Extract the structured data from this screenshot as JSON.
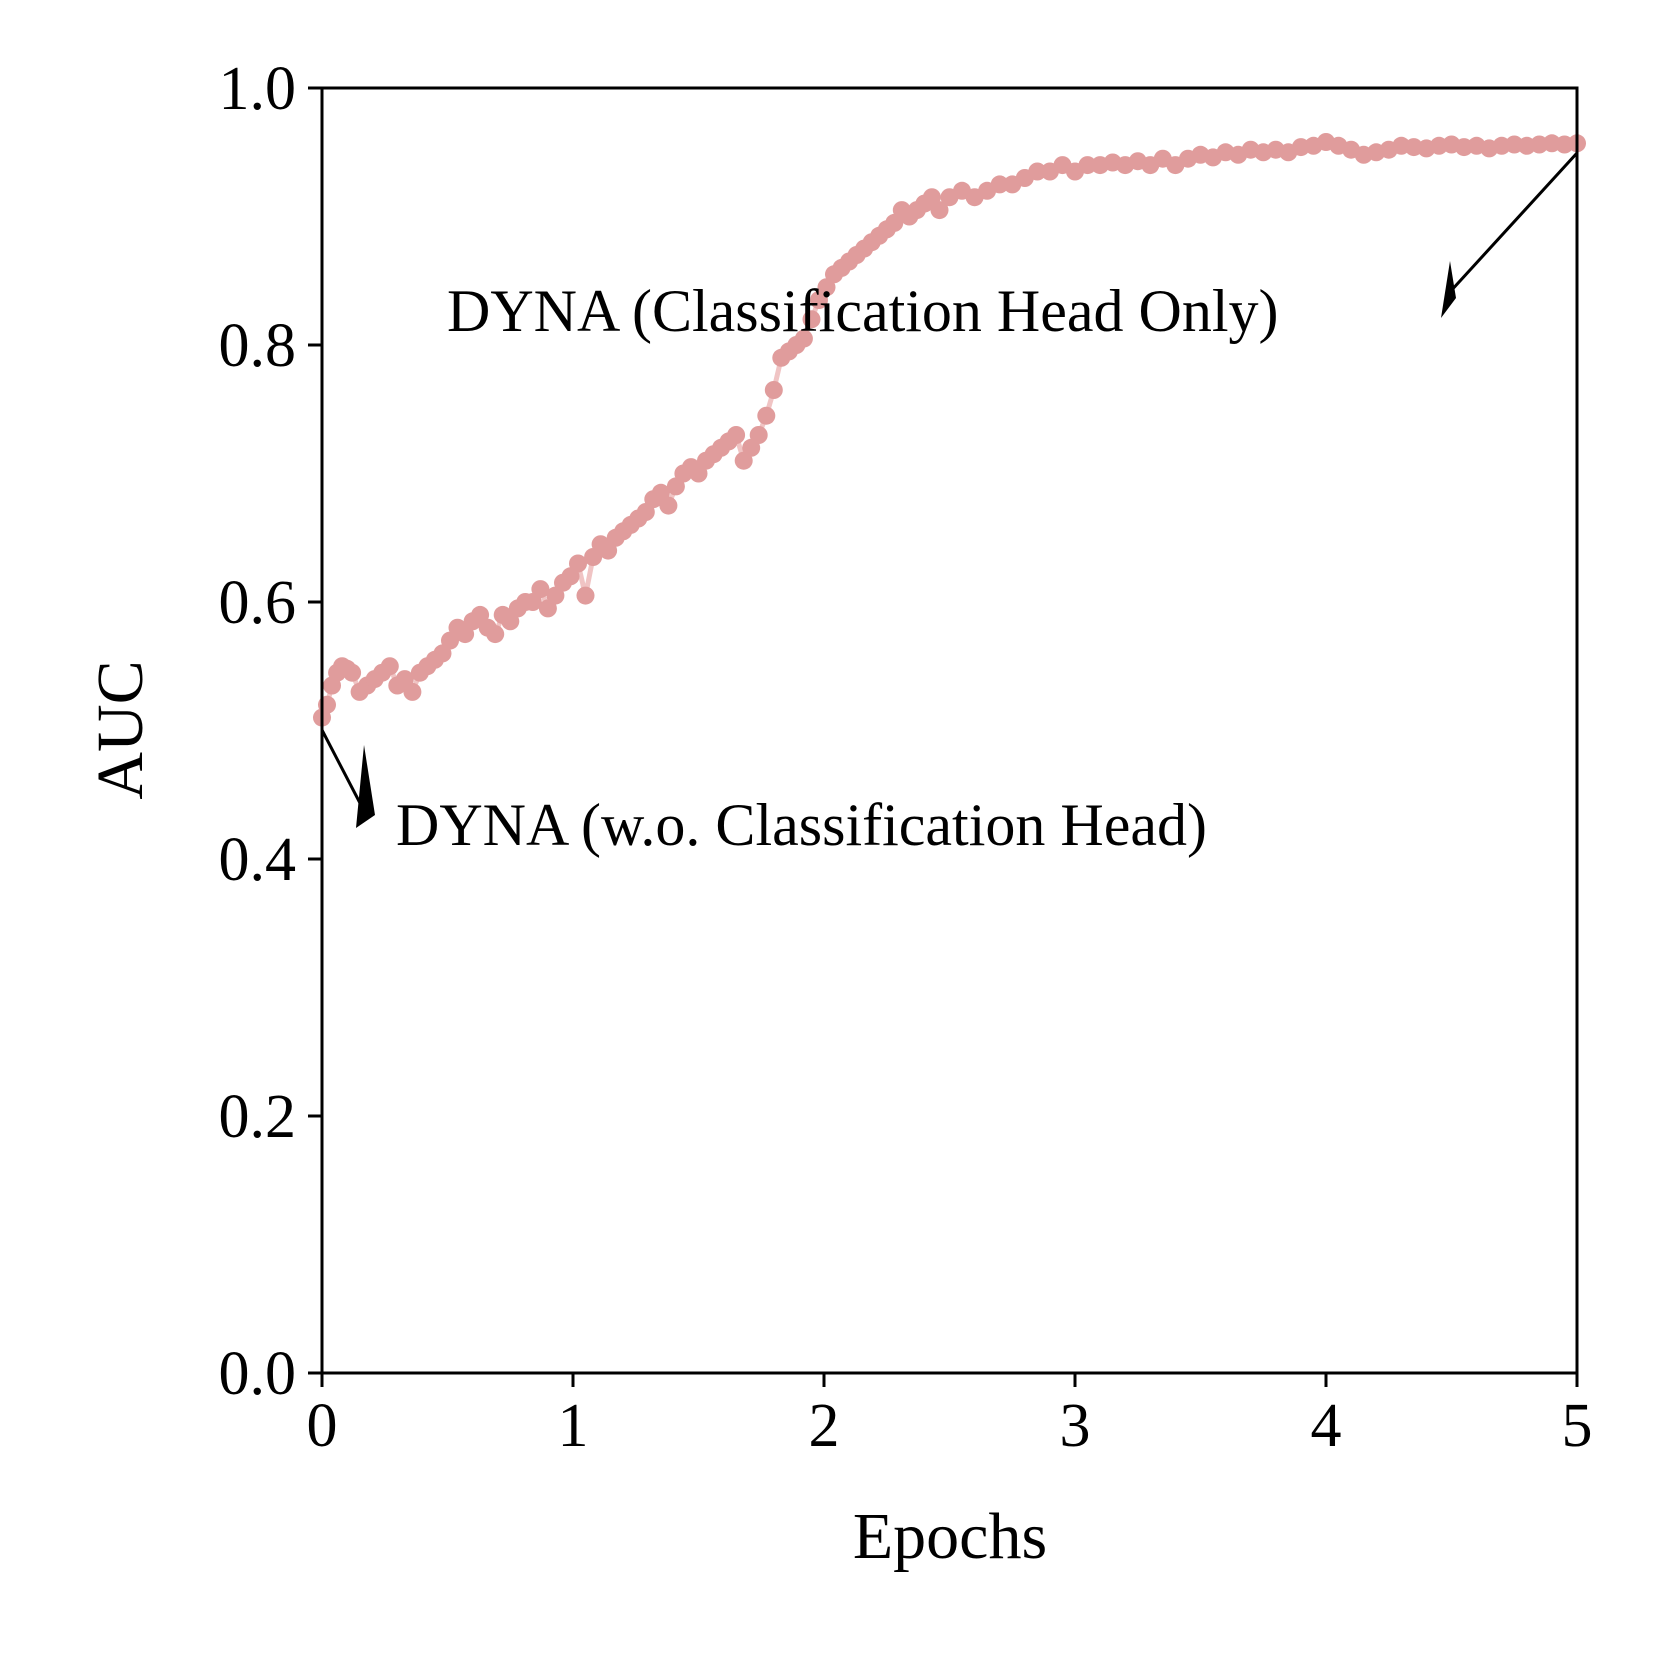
{
  "chart_data": {
    "type": "scatter",
    "title": "",
    "xlabel": "Epochs",
    "ylabel": "AUC",
    "xlim": [
      0,
      5
    ],
    "ylim": [
      0,
      1
    ],
    "xticks": [
      "0",
      "1",
      "2",
      "3",
      "4",
      "5"
    ],
    "yticks": [
      "0.0",
      "0.2",
      "0.4",
      "0.6",
      "0.8",
      "1.0"
    ],
    "grid": false,
    "legend": "none",
    "colors": {
      "marker": "#e09c9c",
      "line": "#f0c4c4",
      "axis": "#000000"
    },
    "annotations": [
      {
        "text": "DYNA (Classification Head Only)",
        "points_to": [
          5,
          0.95
        ]
      },
      {
        "text": "DYNA (w.o. Classification Head)",
        "points_to": [
          0,
          0.5
        ]
      }
    ],
    "series": [
      {
        "x": [
          0.0,
          0.02,
          0.04,
          0.06,
          0.08,
          0.1,
          0.12,
          0.15,
          0.18,
          0.21,
          0.24,
          0.27,
          0.3,
          0.33,
          0.36,
          0.39,
          0.42,
          0.45,
          0.48,
          0.51,
          0.54,
          0.57,
          0.6,
          0.63,
          0.66,
          0.69,
          0.72,
          0.75,
          0.78,
          0.81,
          0.84,
          0.87,
          0.9,
          0.93,
          0.96,
          0.99,
          1.02,
          1.05,
          1.08,
          1.11,
          1.14,
          1.17,
          1.2,
          1.23,
          1.26,
          1.29,
          1.32,
          1.35,
          1.38,
          1.41,
          1.44,
          1.47,
          1.5,
          1.53,
          1.56,
          1.59,
          1.62,
          1.65,
          1.68,
          1.71,
          1.74,
          1.77,
          1.8,
          1.83,
          1.86,
          1.89,
          1.92,
          1.95,
          1.98,
          2.01,
          2.04,
          2.07,
          2.1,
          2.13,
          2.16,
          2.19,
          2.22,
          2.25,
          2.28,
          2.31,
          2.34,
          2.37,
          2.4,
          2.43,
          2.46,
          2.5,
          2.55,
          2.6,
          2.65,
          2.7,
          2.75,
          2.8,
          2.85,
          2.9,
          2.95,
          3.0,
          3.05,
          3.1,
          3.15,
          3.2,
          3.25,
          3.3,
          3.35,
          3.4,
          3.45,
          3.5,
          3.55,
          3.6,
          3.65,
          3.7,
          3.75,
          3.8,
          3.85,
          3.9,
          3.95,
          4.0,
          4.05,
          4.1,
          4.15,
          4.2,
          4.25,
          4.3,
          4.35,
          4.4,
          4.45,
          4.5,
          4.55,
          4.6,
          4.65,
          4.7,
          4.75,
          4.8,
          4.85,
          4.9,
          4.95,
          5.0
        ],
        "y": [
          0.51,
          0.52,
          0.535,
          0.545,
          0.55,
          0.548,
          0.545,
          0.53,
          0.535,
          0.54,
          0.545,
          0.55,
          0.535,
          0.54,
          0.53,
          0.545,
          0.55,
          0.555,
          0.56,
          0.57,
          0.58,
          0.575,
          0.585,
          0.59,
          0.58,
          0.575,
          0.59,
          0.585,
          0.595,
          0.6,
          0.6,
          0.61,
          0.595,
          0.605,
          0.615,
          0.62,
          0.63,
          0.605,
          0.635,
          0.645,
          0.64,
          0.65,
          0.655,
          0.66,
          0.665,
          0.67,
          0.68,
          0.685,
          0.675,
          0.69,
          0.7,
          0.705,
          0.7,
          0.71,
          0.715,
          0.72,
          0.725,
          0.73,
          0.71,
          0.72,
          0.73,
          0.745,
          0.765,
          0.79,
          0.795,
          0.8,
          0.805,
          0.82,
          0.835,
          0.845,
          0.855,
          0.86,
          0.865,
          0.87,
          0.875,
          0.88,
          0.885,
          0.89,
          0.895,
          0.905,
          0.9,
          0.905,
          0.91,
          0.915,
          0.905,
          0.915,
          0.92,
          0.915,
          0.92,
          0.925,
          0.925,
          0.93,
          0.935,
          0.935,
          0.94,
          0.935,
          0.94,
          0.94,
          0.942,
          0.94,
          0.943,
          0.94,
          0.945,
          0.94,
          0.945,
          0.948,
          0.946,
          0.95,
          0.948,
          0.952,
          0.95,
          0.952,
          0.95,
          0.954,
          0.955,
          0.958,
          0.955,
          0.952,
          0.948,
          0.95,
          0.952,
          0.955,
          0.954,
          0.953,
          0.955,
          0.956,
          0.954,
          0.955,
          0.953,
          0.955,
          0.956,
          0.955,
          0.956,
          0.957,
          0.956,
          0.957
        ]
      }
    ]
  }
}
